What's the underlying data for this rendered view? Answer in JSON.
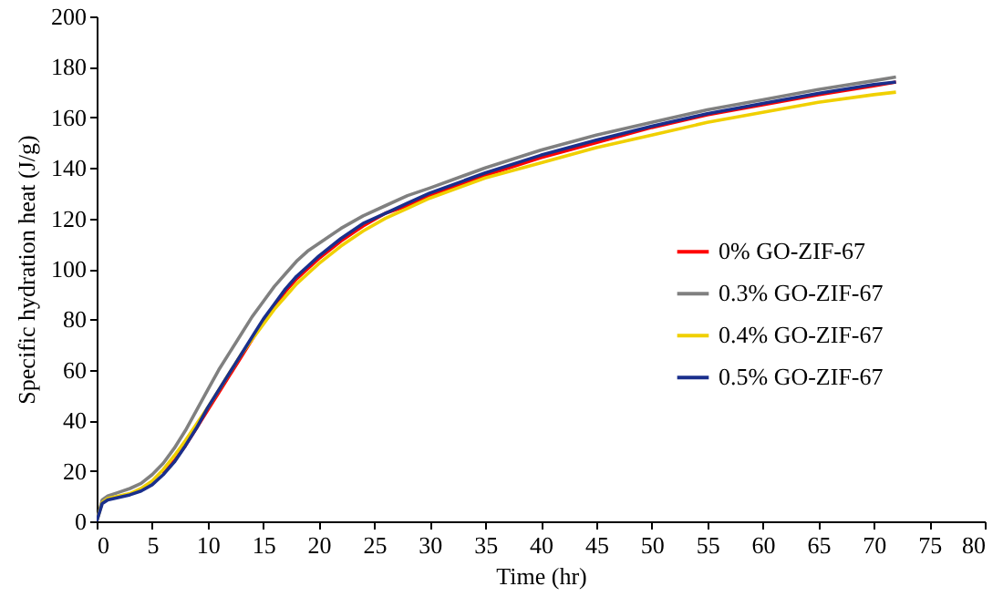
{
  "chart_data": {
    "type": "line",
    "xlabel": "Time (hr)",
    "ylabel": "Specific hydration heat (J/g)",
    "x": [
      0,
      0.5,
      1,
      2,
      3,
      4,
      5,
      6,
      7,
      8,
      9,
      10,
      11,
      12,
      13,
      14,
      15,
      16,
      17,
      18,
      19,
      20,
      22,
      24,
      26,
      28,
      30,
      35,
      40,
      45,
      50,
      55,
      60,
      65,
      70,
      72
    ],
    "series": [
      {
        "name": "0% GO-ZIF-67",
        "color": "#ff0000",
        "values": [
          null,
          null,
          null,
          null,
          null,
          null,
          null,
          19,
          24,
          30,
          37,
          44,
          51,
          58,
          65,
          72,
          79,
          85,
          91,
          96,
          100,
          104,
          111,
          117,
          122,
          125,
          129,
          137,
          144,
          150,
          156,
          161,
          165,
          169,
          172.5,
          174
        ]
      },
      {
        "name": "0.3% GO-ZIF-67",
        "color": "#808080",
        "values": [
          0,
          8.5,
          10,
          11.5,
          13,
          15,
          18.5,
          23,
          29,
          36,
          44,
          52,
          60,
          67,
          74,
          81,
          87,
          93,
          98,
          103,
          107,
          110,
          116,
          121,
          125,
          129,
          132,
          140,
          147,
          153,
          158,
          163,
          167,
          171,
          174.5,
          176
        ]
      },
      {
        "name": "0.4% GO-ZIF-67",
        "color": "#f0d000",
        "values": [
          0,
          7.5,
          9,
          10,
          11,
          13,
          16,
          20.5,
          26,
          32,
          38.5,
          45,
          52,
          59,
          66,
          72,
          78,
          84,
          89,
          94,
          98,
          102,
          109,
          115,
          120,
          124,
          128,
          136,
          142,
          148,
          153,
          158,
          162,
          166,
          169,
          170
        ]
      },
      {
        "name": "0.5% GO-ZIF-67",
        "color": "#1a2f8c",
        "values": [
          0,
          7,
          8.5,
          9.5,
          10.5,
          12,
          14.5,
          18.5,
          23.5,
          30,
          37,
          45,
          52,
          59,
          66,
          73,
          80,
          86,
          92,
          97,
          101,
          105,
          112,
          118,
          122,
          126,
          130,
          138,
          145,
          151,
          156.5,
          161.5,
          165.5,
          169.5,
          173,
          174
        ]
      }
    ],
    "xlim": [
      0,
      80
    ],
    "xticks": [
      0,
      5,
      10,
      15,
      20,
      25,
      30,
      35,
      40,
      45,
      50,
      55,
      60,
      65,
      70,
      75,
      80
    ],
    "ylim": [
      0,
      200
    ],
    "yticks": [
      0,
      20,
      40,
      60,
      80,
      100,
      120,
      140,
      160,
      180,
      200
    ],
    "grid": false,
    "legend": "right",
    "line_style": "solid",
    "marker": "none"
  }
}
